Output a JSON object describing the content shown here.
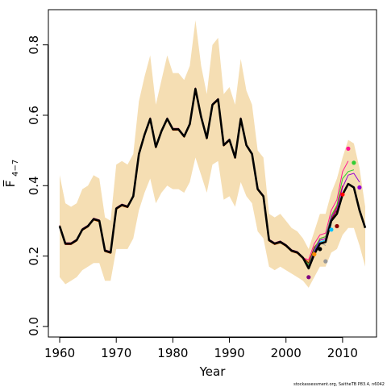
{
  "chart_data": {
    "type": "line",
    "title": "",
    "xlabel": "Year",
    "ylabel": "F̅",
    "ylabel_sub": "4−7",
    "xlim": [
      1958,
      2016
    ],
    "ylim": [
      -0.03,
      0.9
    ],
    "xticks": [
      1960,
      1970,
      1980,
      1990,
      2000,
      2010
    ],
    "yticks": [
      0.0,
      0.2,
      0.4,
      0.6,
      0.8
    ],
    "ytick_labels": [
      "0.0",
      "0.2",
      "0.4",
      "0.6",
      "0.8"
    ],
    "grid": false,
    "legend": "none",
    "footnote": "stockassessment.org, SaitheTB P83.4, n6042",
    "band": {
      "color": "#F5DEB3",
      "x": [
        1960,
        1961,
        1962,
        1963,
        1964,
        1965,
        1966,
        1967,
        1968,
        1969,
        1970,
        1971,
        1972,
        1973,
        1974,
        1975,
        1976,
        1977,
        1978,
        1979,
        1980,
        1981,
        1982,
        1983,
        1984,
        1985,
        1986,
        1987,
        1988,
        1989,
        1990,
        1991,
        1992,
        1993,
        1994,
        1995,
        1996,
        1997,
        1998,
        1999,
        2000,
        2001,
        2002,
        2003,
        2004,
        2005,
        2006,
        2007,
        2008,
        2009,
        2010,
        2011,
        2012,
        2013,
        2014
      ],
      "upper": [
        0.43,
        0.35,
        0.34,
        0.35,
        0.39,
        0.4,
        0.43,
        0.42,
        0.31,
        0.3,
        0.46,
        0.47,
        0.46,
        0.49,
        0.64,
        0.71,
        0.77,
        0.63,
        0.7,
        0.77,
        0.72,
        0.72,
        0.7,
        0.74,
        0.87,
        0.74,
        0.66,
        0.8,
        0.82,
        0.66,
        0.68,
        0.63,
        0.76,
        0.67,
        0.63,
        0.5,
        0.48,
        0.32,
        0.31,
        0.32,
        0.3,
        0.28,
        0.27,
        0.25,
        0.22,
        0.27,
        0.32,
        0.32,
        0.38,
        0.42,
        0.48,
        0.53,
        0.52,
        0.45,
        0.34
      ],
      "lower": [
        0.14,
        0.12,
        0.13,
        0.14,
        0.16,
        0.17,
        0.18,
        0.18,
        0.13,
        0.13,
        0.22,
        0.22,
        0.22,
        0.25,
        0.33,
        0.38,
        0.42,
        0.35,
        0.38,
        0.4,
        0.39,
        0.39,
        0.38,
        0.41,
        0.48,
        0.43,
        0.38,
        0.46,
        0.47,
        0.36,
        0.37,
        0.34,
        0.41,
        0.37,
        0.35,
        0.27,
        0.25,
        0.17,
        0.16,
        0.17,
        0.16,
        0.15,
        0.14,
        0.13,
        0.11,
        0.14,
        0.17,
        0.17,
        0.21,
        0.22,
        0.26,
        0.28,
        0.28,
        0.23,
        0.17
      ]
    },
    "base_years": [
      1960,
      1961,
      1962,
      1963,
      1964,
      1965,
      1966,
      1967,
      1968,
      1969,
      1970,
      1971,
      1972,
      1973,
      1974,
      1975,
      1976,
      1977,
      1978,
      1979,
      1980,
      1981,
      1982,
      1983,
      1984,
      1985,
      1986,
      1987,
      1988,
      1989,
      1990,
      1991,
      1992,
      1993,
      1994,
      1995,
      1996,
      1997,
      1998,
      1999,
      2000,
      2001,
      2002,
      2003
    ],
    "base_values": [
      0.285,
      0.235,
      0.235,
      0.245,
      0.275,
      0.285,
      0.305,
      0.3,
      0.215,
      0.21,
      0.335,
      0.345,
      0.34,
      0.37,
      0.49,
      0.545,
      0.59,
      0.51,
      0.555,
      0.59,
      0.56,
      0.56,
      0.54,
      0.575,
      0.675,
      0.595,
      0.535,
      0.63,
      0.645,
      0.515,
      0.53,
      0.48,
      0.59,
      0.515,
      0.49,
      0.39,
      0.37,
      0.245,
      0.235,
      0.24,
      0.23,
      0.215,
      0.21,
      0.195
    ],
    "series": [
      {
        "color": "#7F007F",
        "x": [
          2004
        ],
        "y": [
          0.165
        ],
        "end": 0.14
      },
      {
        "color": "#FF8C00",
        "x": [
          2004,
          2005
        ],
        "y": [
          0.185,
          0.22
        ],
        "end": 0.205
      },
      {
        "color": "#000000",
        "x": [
          2004,
          2005,
          2006
        ],
        "y": [
          0.175,
          0.215,
          0.235
        ],
        "end": 0.22
      },
      {
        "color": "#999999",
        "x": [
          2004,
          2005,
          2006,
          2007
        ],
        "y": [
          0.18,
          0.22,
          0.24,
          0.23
        ],
        "end": 0.185
      },
      {
        "color": "#00BFFF",
        "x": [
          2004,
          2005,
          2006,
          2007,
          2008
        ],
        "y": [
          0.17,
          0.215,
          0.24,
          0.245,
          0.29
        ],
        "end": 0.275
      },
      {
        "color": "#8B0000",
        "x": [
          2004,
          2005,
          2006,
          2007,
          2008,
          2009
        ],
        "y": [
          0.18,
          0.225,
          0.245,
          0.25,
          0.305,
          0.33
        ],
        "end": 0.285
      },
      {
        "color": "#FF0000",
        "x": [
          2004,
          2005,
          2006,
          2007,
          2008,
          2009,
          2010
        ],
        "y": [
          0.175,
          0.22,
          0.25,
          0.255,
          0.31,
          0.34,
          0.4
        ],
        "end": 0.375
      },
      {
        "color": "#FF1493",
        "x": [
          2004,
          2005,
          2006,
          2007,
          2008,
          2009,
          2010,
          2011
        ],
        "y": [
          0.19,
          0.235,
          0.26,
          0.265,
          0.33,
          0.36,
          0.44,
          0.47
        ],
        "end": 0.505
      },
      {
        "color": "#32CD32",
        "x": [
          2004,
          2005,
          2006,
          2007,
          2008,
          2009,
          2010,
          2011,
          2012
        ],
        "y": [
          0.175,
          0.22,
          0.25,
          0.255,
          0.315,
          0.345,
          0.42,
          0.44,
          0.445
        ],
        "end": 0.465
      },
      {
        "color": "#9400D3",
        "x": [
          2004,
          2005,
          2006,
          2007,
          2008,
          2009,
          2010,
          2011,
          2012,
          2013
        ],
        "y": [
          0.17,
          0.215,
          0.245,
          0.25,
          0.31,
          0.335,
          0.395,
          0.43,
          0.435,
          0.41
        ],
        "end": 0.395
      },
      {
        "color": "#000000",
        "x": [
          2004,
          2005,
          2006,
          2007,
          2008,
          2009,
          2010,
          2011,
          2012,
          2013,
          2014
        ],
        "y": [
          0.165,
          0.205,
          0.235,
          0.24,
          0.3,
          0.32,
          0.375,
          0.405,
          0.395,
          0.33,
          0.28
        ],
        "bold": true
      }
    ]
  }
}
